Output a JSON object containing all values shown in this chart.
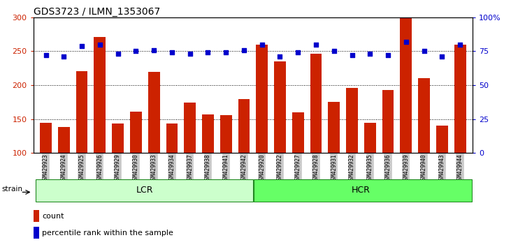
{
  "title": "GDS3723 / ILMN_1353067",
  "samples": [
    "GSM429923",
    "GSM429924",
    "GSM429925",
    "GSM429926",
    "GSM429929",
    "GSM429930",
    "GSM429933",
    "GSM429934",
    "GSM429937",
    "GSM429938",
    "GSM429941",
    "GSM429942",
    "GSM429920",
    "GSM429922",
    "GSM429927",
    "GSM429928",
    "GSM429931",
    "GSM429932",
    "GSM429935",
    "GSM429936",
    "GSM429939",
    "GSM429940",
    "GSM429943",
    "GSM429944"
  ],
  "counts": [
    145,
    138,
    221,
    271,
    144,
    161,
    220,
    144,
    174,
    157,
    156,
    180,
    260,
    235,
    160,
    246,
    175,
    196,
    145,
    193,
    300,
    210,
    141,
    260
  ],
  "percentile_ranks": [
    72,
    71,
    79,
    80,
    73,
    75,
    76,
    74,
    73,
    74,
    74,
    76,
    80,
    71,
    74,
    80,
    75,
    72,
    73,
    72,
    82,
    75,
    71,
    80
  ],
  "lcr_count": 12,
  "hcr_count": 12,
  "lcr_label": "LCR",
  "hcr_label": "HCR",
  "strain_label": "strain",
  "ylim_left": [
    100,
    300
  ],
  "ylim_right": [
    0,
    100
  ],
  "y_ticks_left": [
    100,
    150,
    200,
    250,
    300
  ],
  "y_ticks_right": [
    0,
    25,
    50,
    75,
    100
  ],
  "bar_color": "#cc2200",
  "dot_color": "#0000cc",
  "lcr_bg": "#ccffcc",
  "hcr_bg": "#66ff66",
  "tick_bg": "#c8c8c8",
  "legend_count_label": "count",
  "legend_pct_label": "percentile rank within the sample",
  "title_fontsize": 10,
  "tick_fontsize": 8,
  "axis_label_color_left": "#cc2200",
  "axis_label_color_right": "#0000cc"
}
